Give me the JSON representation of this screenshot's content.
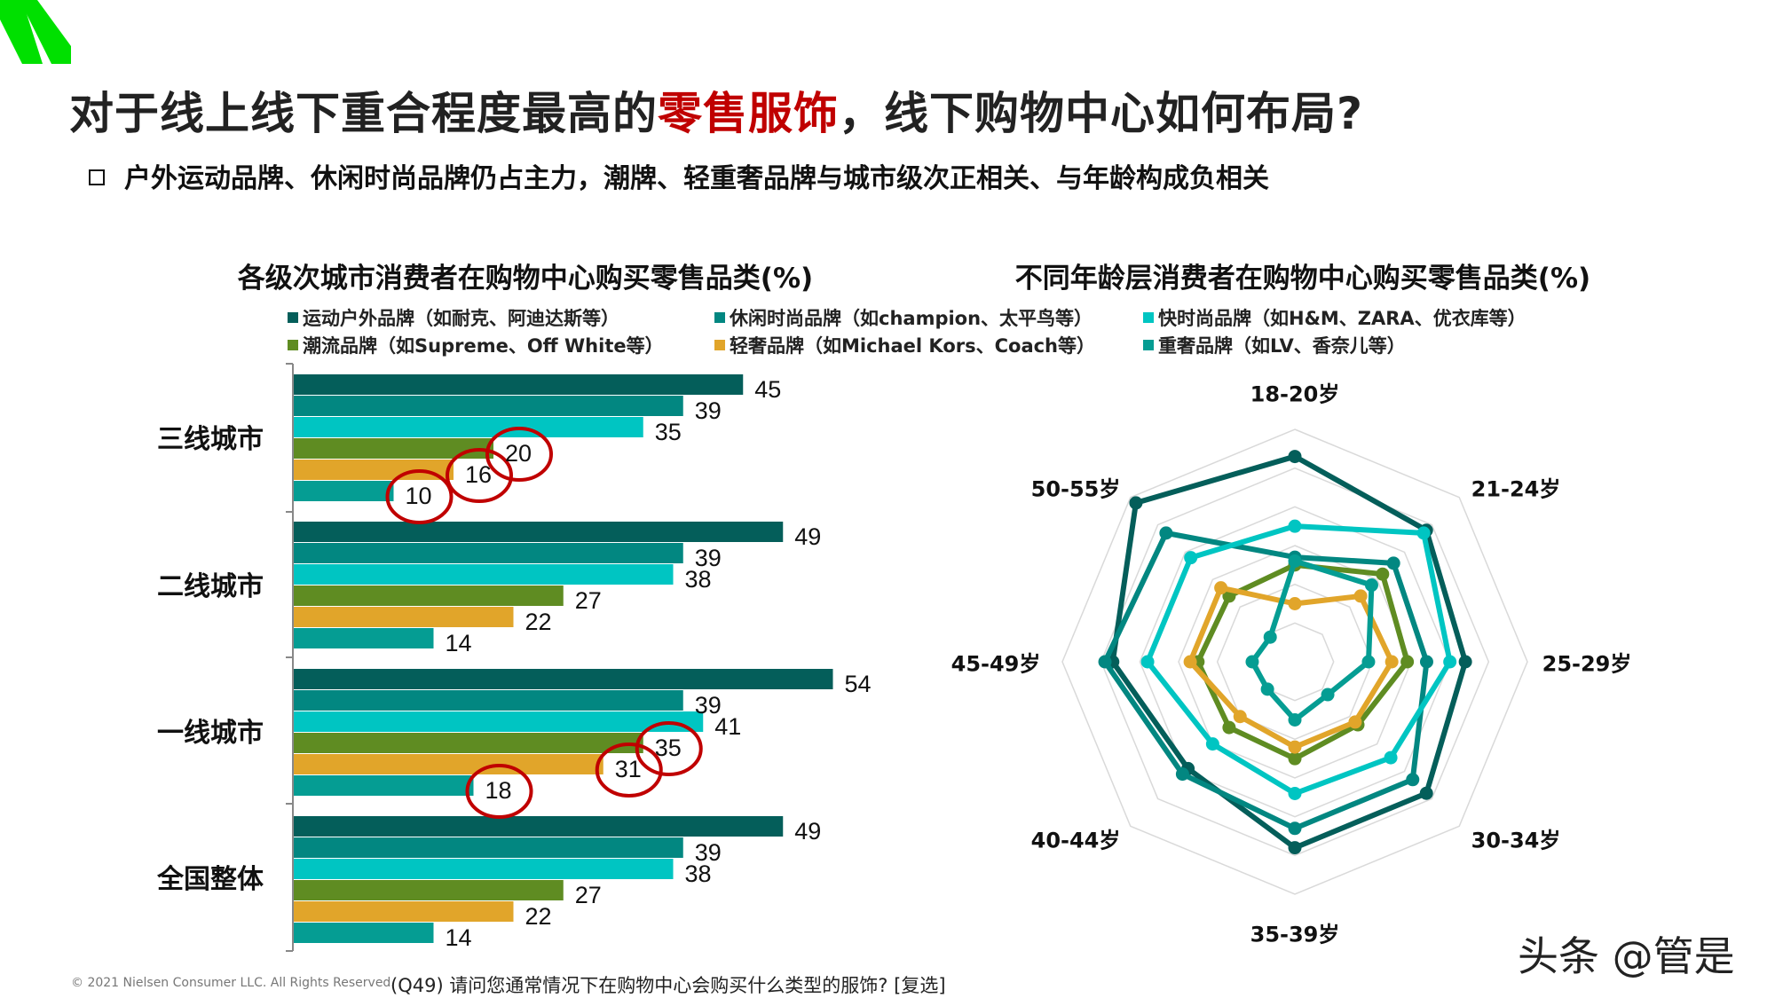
{
  "header": {
    "title_pre": "对于线上线下重合程度最高的",
    "title_highlight": "零售服饰",
    "title_post": "，线下购物中心如何布局?",
    "subtitle": "户外运动品牌、休闲时尚品牌仍占主力，潮牌、轻重奢品牌与城市级次正相关、与年龄构成负相关",
    "logo_color": "#00E000",
    "highlight_color": "#C00000"
  },
  "legend": [
    {
      "label": "运动户外品牌（如耐克、阿迪达斯等）",
      "color": "#045E5A"
    },
    {
      "label": "休闲时尚品牌（如champion、太平鸟等）",
      "color": "#028781"
    },
    {
      "label": "快时尚品牌（如H&M、ZARA、优衣库等）",
      "color": "#00C5C2"
    },
    {
      "label": "潮流品牌（如Supreme、Off White等）",
      "color": "#5F8C22"
    },
    {
      "label": "轻奢品牌（如Michael Kors、Coach等）",
      "color": "#E1A52A"
    },
    {
      "label": "重奢品牌（如LV、香奈儿等）",
      "color": "#059D93"
    }
  ],
  "chart_data": [
    {
      "type": "bar",
      "orientation": "horizontal",
      "title": "各级次城市消费者在购物中心购买零售品类(%)",
      "categories": [
        "三线城市",
        "二线城市",
        "一线城市",
        "全国整体"
      ],
      "series": [
        {
          "name": "运动户外品牌（如耐克、阿迪达斯等）",
          "values": [
            45,
            49,
            54,
            49
          ]
        },
        {
          "name": "休闲时尚品牌（如champion、太平鸟等）",
          "values": [
            39,
            39,
            39,
            39
          ]
        },
        {
          "name": "快时尚品牌（如H&M、ZARA、优衣库等）",
          "values": [
            35,
            38,
            41,
            38
          ]
        },
        {
          "name": "潮流品牌（如Supreme、Off White等）",
          "values": [
            20,
            27,
            35,
            27
          ]
        },
        {
          "name": "轻奢品牌（如Michael Kors、Coach等）",
          "values": [
            16,
            22,
            31,
            22
          ]
        },
        {
          "name": "重奢品牌（如LV、香奈儿等）",
          "values": [
            10,
            14,
            18,
            14
          ]
        }
      ],
      "highlighted": [
        {
          "category": "三线城市",
          "series": [
            3,
            4,
            5
          ]
        },
        {
          "category": "一线城市",
          "series": [
            3,
            4,
            5
          ]
        }
      ],
      "highlight_color": "#C00000",
      "data_labels": true,
      "grid": false
    },
    {
      "type": "radar",
      "title": "不同年龄层消费者在购物中心购买零售品类(%)",
      "categories": [
        "18-20岁",
        "21-24岁",
        "25-29岁",
        "30-34岁",
        "35-39岁",
        "40-44岁",
        "45-49岁",
        "50-55岁"
      ],
      "range": [
        0,
        60
      ],
      "grid": true,
      "series": [
        {
          "name": "运动户外品牌（如耐克、阿迪达斯等）",
          "values": [
            53,
            48,
            44,
            48,
            48,
            39,
            47,
            58
          ]
        },
        {
          "name": "休闲时尚品牌（如champion、太平鸟等）",
          "values": [
            27,
            36,
            34,
            43,
            43,
            41,
            49,
            47
          ]
        },
        {
          "name": "快时尚品牌（如H&M、ZARA、优衣库等）",
          "values": [
            35,
            47,
            40,
            35,
            34,
            30,
            38,
            38
          ]
        },
        {
          "name": "潮流品牌（如Supreme、Off White等）",
          "values": [
            25,
            32,
            29,
            23,
            25,
            24,
            25,
            24
          ]
        },
        {
          "name": "轻奢品牌（如Michael Kors、Coach等）",
          "values": [
            15,
            24,
            25,
            22,
            22,
            20,
            27,
            27
          ]
        },
        {
          "name": "重奢品牌（如LV、香奈儿等）",
          "values": [
            26,
            28,
            19,
            12,
            15,
            10,
            11,
            9
          ]
        }
      ]
    }
  ],
  "footer": {
    "copyright": "© 2021 Nielsen Consumer LLC. All Rights Reserved.",
    "question": "(Q49) 请问您通常情况下在购物中心会购买什么类型的服饰? [复选]",
    "watermark": "头条 @管是"
  }
}
